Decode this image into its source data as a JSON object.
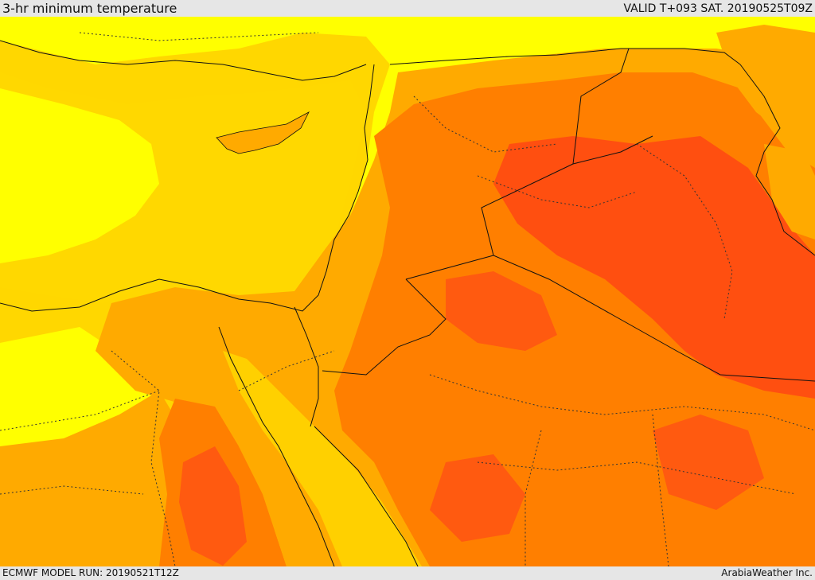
{
  "header": {
    "title": "3-hr minimum temperature",
    "valid_time": "VALID T+093 SAT. 20190525T09Z"
  },
  "footer": {
    "model_run": "ECMWF MODEL RUN: 20190521T12Z",
    "credit": "ArabiaWeather Inc."
  },
  "map": {
    "variable": "3-hr minimum temperature",
    "region": "Eastern Mediterranean, Levant, Egypt, Iraq, northern Arabia",
    "shading_colors": [
      "#ffff00",
      "#ffd700",
      "#ffaa00",
      "#ff7f00",
      "#ff4f10"
    ],
    "border_color": "#111111",
    "land_boundary_style": "dotted"
  }
}
